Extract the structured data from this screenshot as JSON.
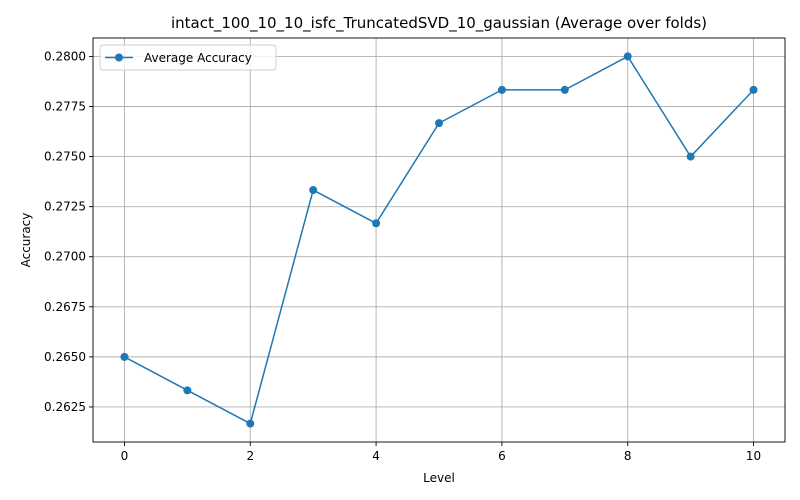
{
  "chart_data": {
    "type": "line",
    "title": "intact_100_10_10_isfc_TruncatedSVD_10_gaussian (Average over folds)",
    "xlabel": "Level",
    "ylabel": "Accuracy",
    "x": [
      0,
      1,
      2,
      3,
      4,
      5,
      6,
      7,
      8,
      9,
      10
    ],
    "series": [
      {
        "name": "Average Accuracy",
        "color": "#1f77b4",
        "marker": "circle",
        "values": [
          0.265,
          0.26333,
          0.26167,
          0.27333,
          0.27167,
          0.27667,
          0.27833,
          0.27833,
          0.28,
          0.275,
          0.27833
        ]
      }
    ],
    "xlim": [
      -0.5,
      10.5
    ],
    "ylim": [
      0.26075,
      0.28092
    ],
    "xticks": [
      0,
      2,
      4,
      6,
      8,
      10
    ],
    "xtick_labels": [
      "0",
      "2",
      "4",
      "6",
      "8",
      "10"
    ],
    "yticks": [
      0.2625,
      0.265,
      0.2675,
      0.27,
      0.2725,
      0.275,
      0.2775,
      0.28
    ],
    "ytick_labels": [
      "0.2625",
      "0.2650",
      "0.2675",
      "0.2700",
      "0.2725",
      "0.2750",
      "0.2775",
      "0.2800"
    ],
    "grid": true,
    "legend_position": "top-left"
  }
}
